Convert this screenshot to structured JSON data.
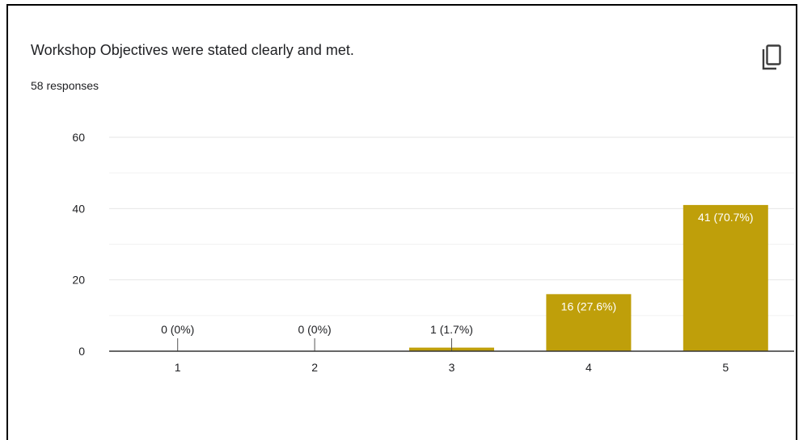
{
  "card": {
    "title": "Workshop Objectives were stated clearly and met.",
    "responses": "58 responses",
    "copy_icon": "copy-icon"
  },
  "colors": {
    "bar": "#bf9f0a",
    "axis": "#333333",
    "grid": "#e6e6e6",
    "text": "#202124"
  },
  "chart_data": {
    "type": "bar",
    "categories": [
      "1",
      "2",
      "3",
      "4",
      "5"
    ],
    "values": [
      0,
      0,
      1,
      16,
      41
    ],
    "labels": [
      "0 (0%)",
      "0 (0%)",
      "1 (1.7%)",
      "16 (27.6%)",
      "41 (70.7%)"
    ],
    "title": "Workshop Objectives were stated clearly and met.",
    "xlabel": "",
    "ylabel": "",
    "ylim": [
      0,
      60
    ],
    "yticks": [
      0,
      20,
      40,
      60
    ],
    "grid": true,
    "legend": "none"
  }
}
